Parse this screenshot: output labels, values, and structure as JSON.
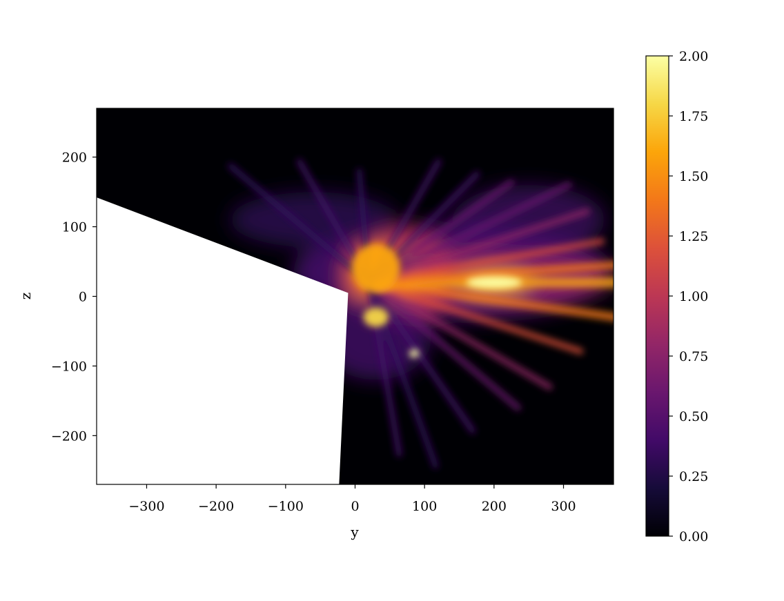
{
  "chart_data": {
    "type": "heatmap",
    "title": "",
    "xlabel": "y",
    "ylabel": "z",
    "xlim": [
      -372,
      372
    ],
    "ylim": [
      -270,
      270
    ],
    "x_ticks": [
      -300,
      -200,
      -100,
      0,
      100,
      200,
      300
    ],
    "x_tick_labels": [
      "−300",
      "−200",
      "−100",
      "0",
      "100",
      "200",
      "300"
    ],
    "y_ticks": [
      200,
      100,
      0,
      -100,
      -200
    ],
    "y_tick_labels": [
      "200",
      "100",
      "0",
      "−100",
      "−200"
    ],
    "colormap": "inferno",
    "colorbar": {
      "vmin": 0.0,
      "vmax": 2.0,
      "ticks": [
        0.0,
        0.25,
        0.5,
        0.75,
        1.0,
        1.25,
        1.5,
        1.75,
        2.0
      ],
      "tick_labels": [
        "0.00",
        "0.25",
        "0.50",
        "0.75",
        "1.00",
        "1.25",
        "1.50",
        "1.75",
        "2.00"
      ]
    },
    "masked_region_vertices": [
      [
        -372,
        142
      ],
      [
        -10,
        5
      ],
      [
        -23,
        -270
      ],
      [
        -372,
        -270
      ]
    ],
    "features": [
      {
        "kind": "core",
        "y": 30,
        "z": 40,
        "value": 1.9
      },
      {
        "kind": "jet",
        "y": 200,
        "z": 20,
        "value": 2.0
      },
      {
        "kind": "bright-spot",
        "y": 85,
        "z": -82,
        "value": 1.8
      },
      {
        "kind": "lower-lobe",
        "y": 30,
        "z": -30,
        "value": 1.7
      }
    ],
    "colors": {
      "background": "#000004",
      "masked": "#ffffff",
      "low": "#320a5e",
      "mid": "#bc3754",
      "high": "#f98e09",
      "max": "#fcffa4"
    }
  }
}
